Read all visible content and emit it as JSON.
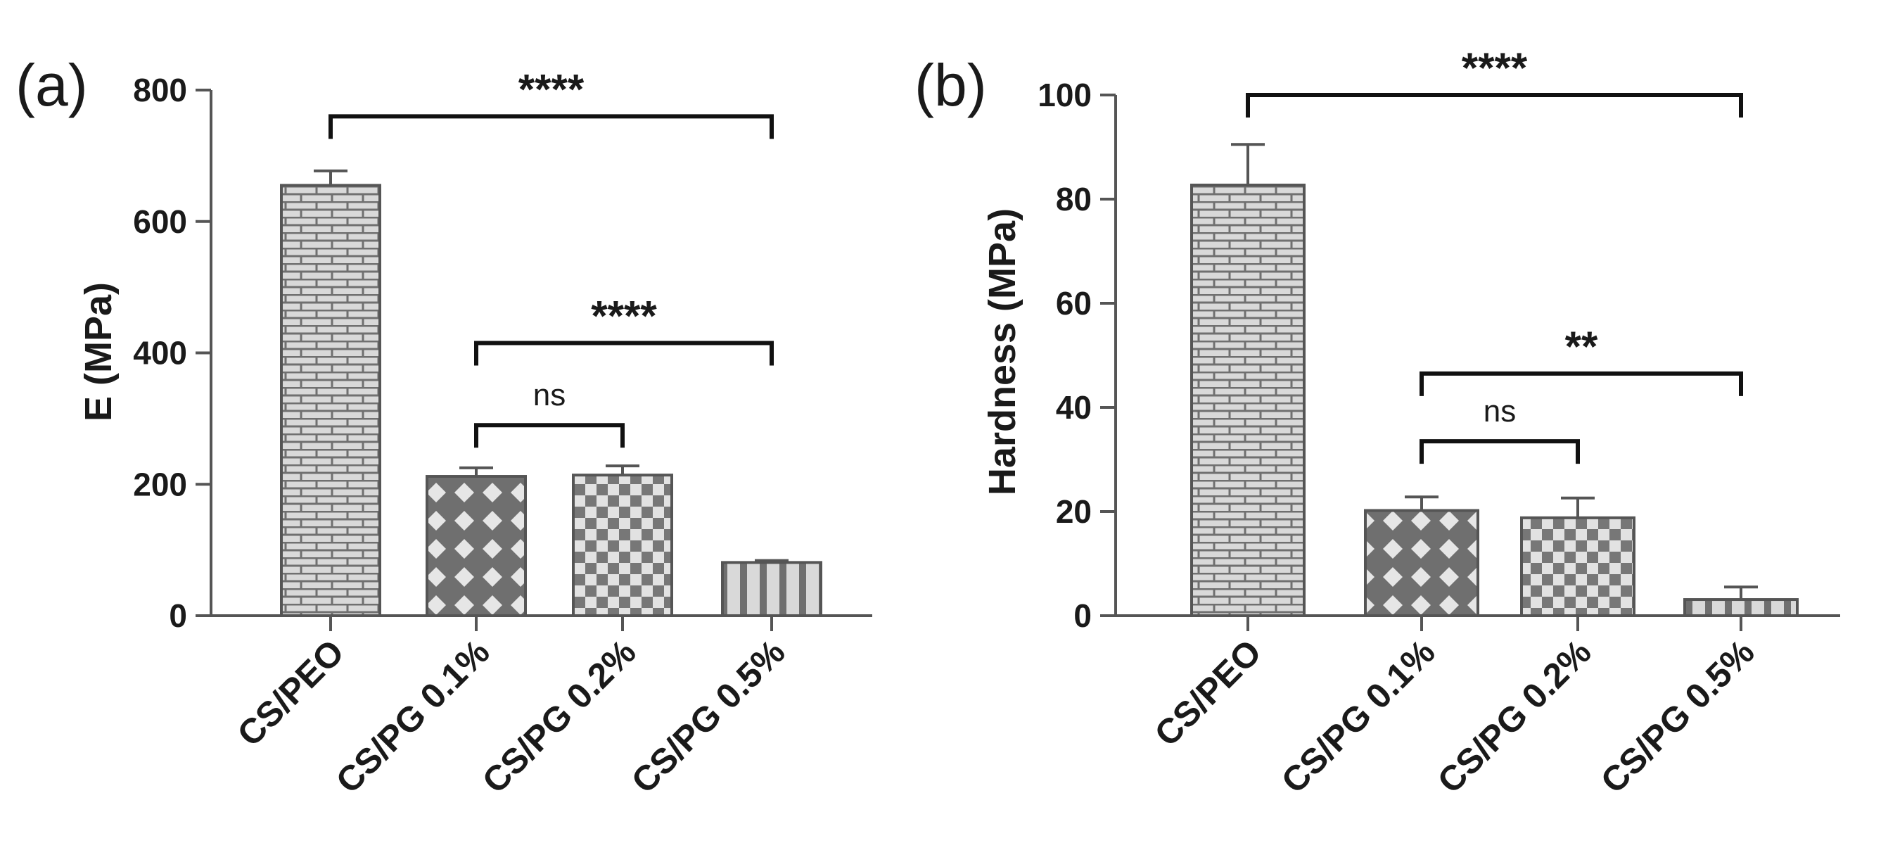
{
  "chart_data": [
    {
      "panel_label": "(a)",
      "type": "bar",
      "categories": [
        "CS/PEO",
        "CS/PG 0.1%",
        "CS/PG 0.2%",
        "CS/PG 0.5%"
      ],
      "values": [
        655,
        212,
        214,
        81
      ],
      "errors": [
        22,
        13,
        14,
        3
      ],
      "patterns": [
        "brick",
        "diamond",
        "checker",
        "stripes"
      ],
      "ylabel": "E (MPa)",
      "xlabel": "",
      "ylim": [
        0,
        800
      ],
      "yticks": [
        0,
        200,
        400,
        600,
        800
      ],
      "comparisons": [
        {
          "from": 0,
          "to": 3,
          "label": "****",
          "level": 760
        },
        {
          "from": 1,
          "to": 3,
          "label": "****",
          "level": 415
        },
        {
          "from": 1,
          "to": 2,
          "label": "ns",
          "level": 290
        }
      ]
    },
    {
      "panel_label": "(b)",
      "type": "bar",
      "categories": [
        "CS/PEO",
        "CS/PG 0.1%",
        "CS/PG 0.2%",
        "CS/PG 0.5%"
      ],
      "values": [
        82.7,
        20.2,
        18.8,
        3.1
      ],
      "errors": [
        7.8,
        2.6,
        3.8,
        2.4
      ],
      "patterns": [
        "brick",
        "diamond",
        "checker",
        "stripes"
      ],
      "ylabel": "Hardness (MPa)",
      "xlabel": "",
      "ylim": [
        0,
        100
      ],
      "yticks": [
        0,
        20,
        40,
        60,
        80,
        100
      ],
      "comparisons": [
        {
          "from": 0,
          "to": 3,
          "label": "****",
          "level": 100
        },
        {
          "from": 1,
          "to": 3,
          "label": "**",
          "level": 46.5
        },
        {
          "from": 1,
          "to": 2,
          "label": "ns",
          "level": 33.5
        }
      ]
    }
  ],
  "colors": {
    "axis": "#555555",
    "bar_fill": "#d9d9d9",
    "bar_pattern": "#707070",
    "text": "#1a1a1a"
  }
}
